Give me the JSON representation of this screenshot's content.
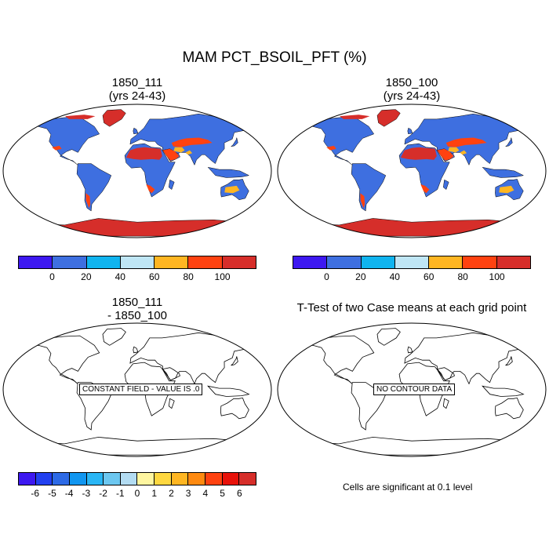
{
  "title": "MAM PCT_BSOIL_PFT (%)",
  "panels": {
    "top_left": {
      "line1": "1850_111",
      "line2": "(yrs 24-43)"
    },
    "top_right": {
      "line1": "1850_100",
      "line2": "(yrs 24-43)"
    },
    "bottom_left": {
      "line1": "1850_111",
      "line2": "- 1850_100",
      "box": "CONSTANT FIELD - VALUE IS .0"
    },
    "bottom_right": {
      "line1": "T-Test of two Case means at each grid point",
      "box": "NO CONTOUR DATA"
    }
  },
  "colorbar_top": {
    "colors": [
      "#3d18f0",
      "#3e6fe0",
      "#10b4ef",
      "#bfe6f5",
      "#ffb622",
      "#ff4210",
      "#d62e2a"
    ],
    "labels": [
      "0",
      "20",
      "40",
      "60",
      "80",
      "100"
    ]
  },
  "colorbar_diff": {
    "colors": [
      "#3d18f0",
      "#2240f0",
      "#2d6ae6",
      "#1196f0",
      "#29b6f5",
      "#6cc7f0",
      "#b3dcf2",
      "#fff6a0",
      "#ffd840",
      "#ffb622",
      "#ff8a10",
      "#ff4210",
      "#e8120a",
      "#d62e2a"
    ],
    "labels": [
      "-6",
      "-5",
      "-4",
      "-3",
      "-2",
      "-1",
      "0",
      "1",
      "2",
      "3",
      "4",
      "5",
      "6"
    ]
  },
  "significance_note": "Cells are significant at 0.1 level"
}
